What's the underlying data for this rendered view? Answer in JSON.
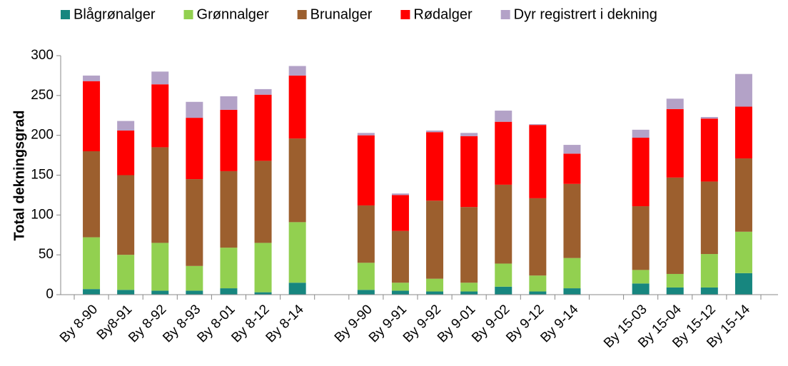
{
  "chart_data": {
    "type": "bar",
    "stacked": true,
    "y_label": "Total dekningsgrad",
    "categories": [
      "By 8-90",
      "By8-91",
      "By 8-92",
      "By 8-93",
      "By 8-01",
      "By 8-12",
      "By 8-14",
      null,
      "By 9-90",
      "By 9-91",
      "By 9-92",
      "By 9-01",
      "By 9-02",
      "By 9-12",
      "By 9-14",
      null,
      "By 15-03",
      "By 15-04",
      "By 15-12",
      "By 15-14"
    ],
    "series": [
      {
        "name": "Blågrønalger",
        "color": "#17867f",
        "values": [
          7,
          6,
          5,
          5,
          8,
          3,
          15,
          null,
          6,
          5,
          4,
          4,
          10,
          4,
          8,
          null,
          14,
          9,
          9,
          27
        ]
      },
      {
        "name": "Grønnalger",
        "color": "#92d050",
        "values": [
          65,
          44,
          60,
          31,
          51,
          62,
          76,
          null,
          34,
          10,
          16,
          11,
          29,
          20,
          38,
          null,
          17,
          17,
          42,
          52
        ]
      },
      {
        "name": "Brunalger",
        "color": "#9c5f2e",
        "values": [
          108,
          100,
          120,
          109,
          96,
          103,
          105,
          null,
          72,
          65,
          98,
          95,
          99,
          97,
          93,
          null,
          80,
          121,
          91,
          92
        ]
      },
      {
        "name": "Rødalger",
        "color": "#ff0000",
        "values": [
          88,
          56,
          79,
          77,
          77,
          83,
          79,
          null,
          88,
          45,
          86,
          89,
          79,
          92,
          38,
          null,
          86,
          86,
          79,
          65
        ]
      },
      {
        "name": "Dyr registrert i dekning",
        "color": "#b3a2c7",
        "values": [
          7,
          12,
          16,
          20,
          17,
          7,
          12,
          null,
          3,
          2,
          2,
          4,
          14,
          1,
          11,
          null,
          10,
          13,
          2,
          41
        ]
      }
    ],
    "ylim": [
      0,
      300
    ],
    "yticks": [
      0,
      50,
      100,
      150,
      200,
      250,
      300
    ],
    "legend": "top"
  }
}
